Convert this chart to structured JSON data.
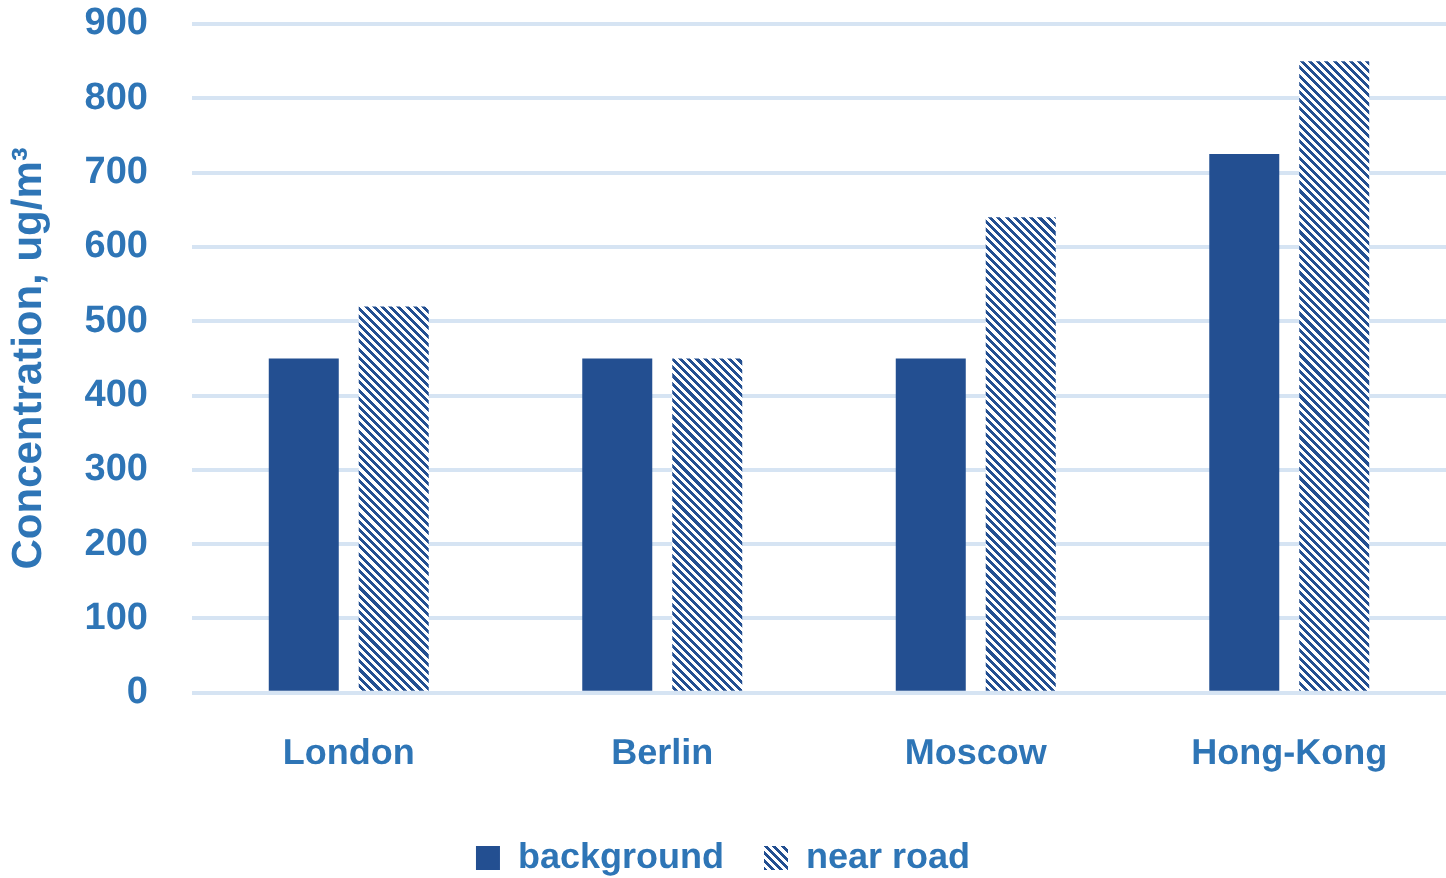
{
  "chart_data": {
    "type": "bar",
    "ylabel": "Concentration, ug/m³",
    "categories": [
      "London",
      "Berlin",
      "Moscow",
      "Hong-Kong"
    ],
    "series": [
      {
        "name": "background",
        "color": "#234f91",
        "values": [
          450,
          450,
          450,
          725
        ]
      },
      {
        "name": "near road",
        "color": "#234f91",
        "values": [
          520,
          450,
          640,
          850
        ]
      }
    ],
    "ylim": [
      0,
      900
    ],
    "yticks": [
      0,
      100,
      200,
      300,
      400,
      500,
      600,
      700,
      800,
      900
    ],
    "grid": "y",
    "legend": "bottom"
  }
}
